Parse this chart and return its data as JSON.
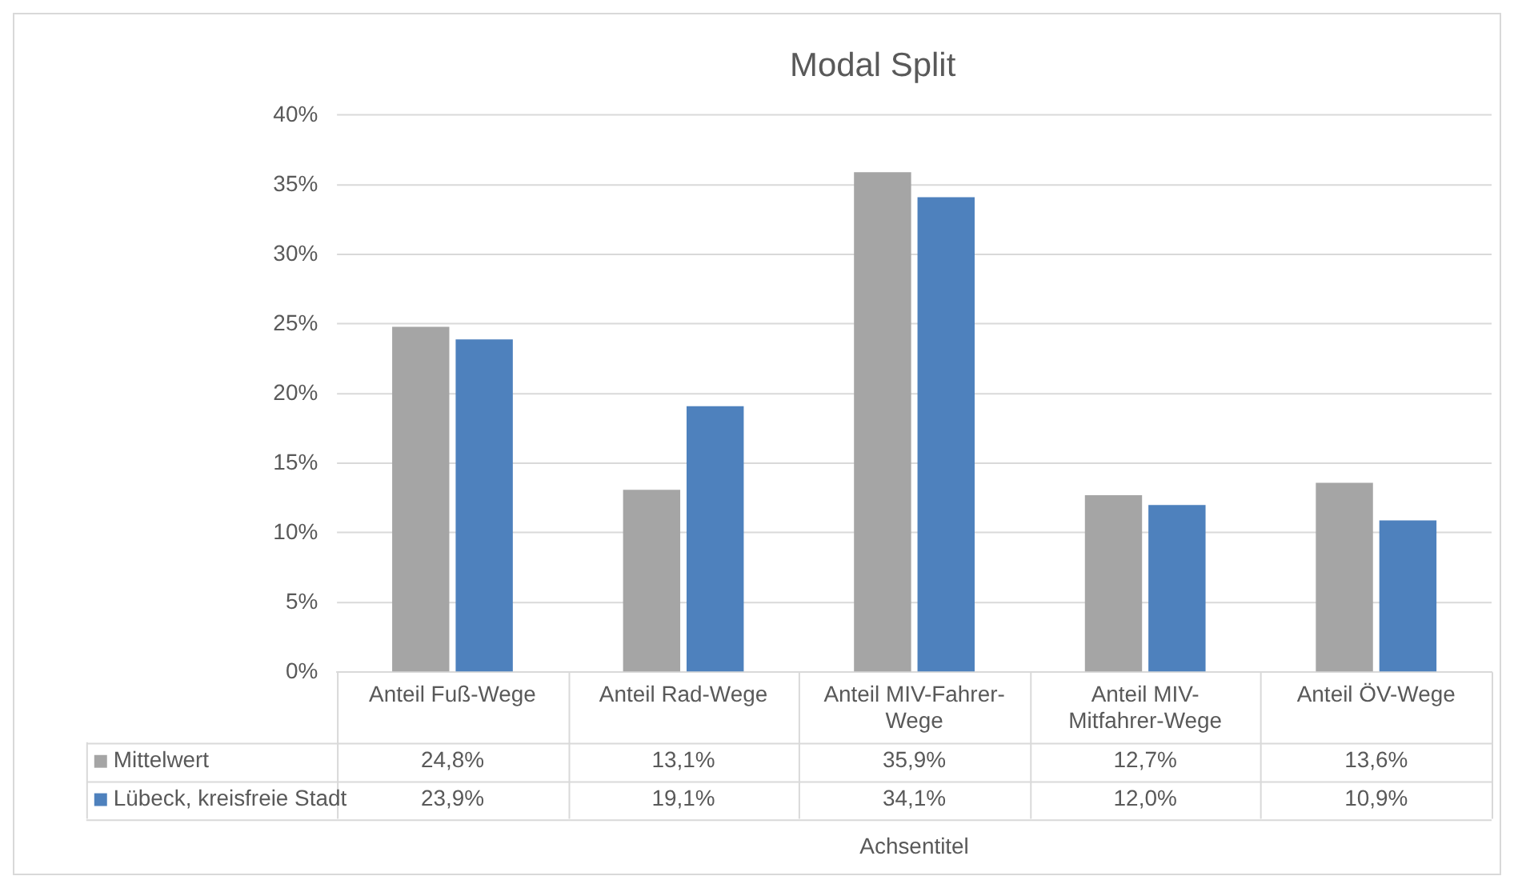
{
  "chart_data": {
    "type": "bar",
    "title": "Modal Split",
    "xlabel": "Achsentitel",
    "categories": [
      "Anteil Fuß-Wege",
      "Anteil Rad-Wege",
      "Anteil MIV-Fahrer-Wege",
      "Anteil MIV-Mitfahrer-Wege",
      "Anteil ÖV-Wege"
    ],
    "series": [
      {
        "name": "Mittelwert",
        "color": "#a5a5a5",
        "values": [
          24.8,
          13.1,
          35.9,
          12.7,
          13.6
        ],
        "value_labels": [
          "24,8%",
          "13,1%",
          "35,9%",
          "12,7%",
          "13,6%"
        ]
      },
      {
        "name": "Lübeck, kreisfreie Stadt",
        "color": "#4e81bd",
        "values": [
          23.9,
          19.1,
          34.1,
          12.0,
          10.9
        ],
        "value_labels": [
          "23,9%",
          "19,1%",
          "34,1%",
          "12,0%",
          "10,9%"
        ]
      }
    ],
    "ylim": [
      0,
      40
    ],
    "yticks": [
      {
        "value": 0,
        "label": "0%"
      },
      {
        "value": 5,
        "label": "5%"
      },
      {
        "value": 10,
        "label": "10%"
      },
      {
        "value": 15,
        "label": "15%"
      },
      {
        "value": 20,
        "label": "20%"
      },
      {
        "value": 25,
        "label": "25%"
      },
      {
        "value": 30,
        "label": "30%"
      },
      {
        "value": 35,
        "label": "35%"
      },
      {
        "value": 40,
        "label": "40%"
      }
    ],
    "grid": "y",
    "legend": "bottom"
  }
}
